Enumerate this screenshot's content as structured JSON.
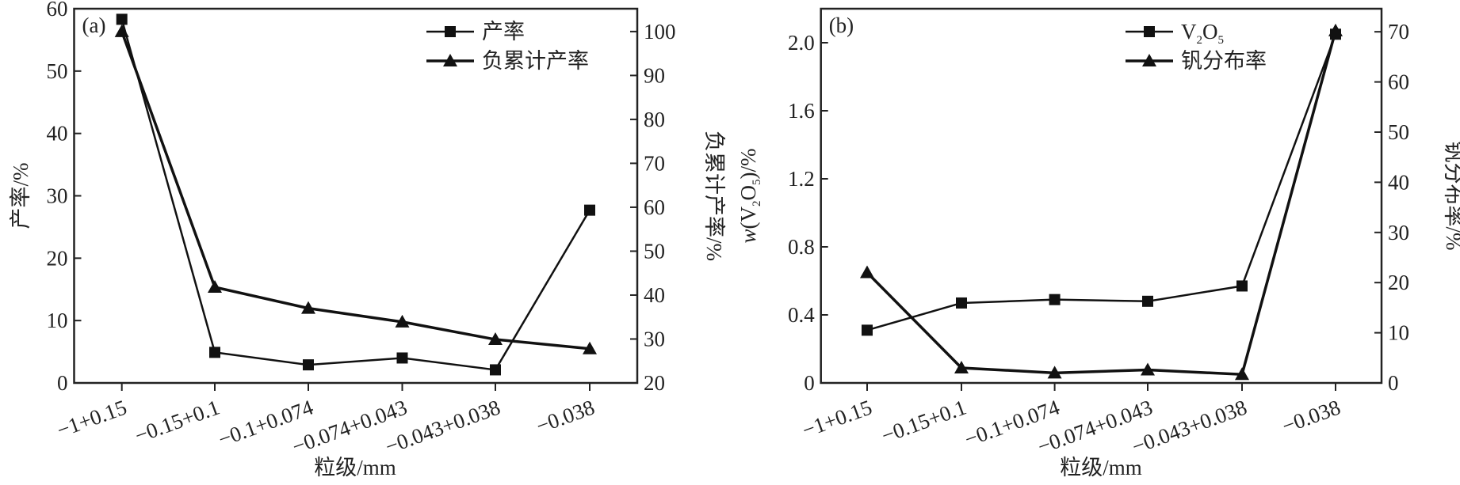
{
  "chart_data": [
    {
      "type": "line",
      "panel_label": "(a)",
      "xlabel": "粒级/mm",
      "ylabel": "产率/%",
      "ylabel_right": "负累计产率/%",
      "categories": [
        "−1+0.15",
        "−0.15+0.1",
        "−0.1+0.074",
        "−0.074+0.043",
        "−0.043+0.038",
        "−0.038"
      ],
      "ylim": [
        0,
        60
      ],
      "yticks": [
        0,
        10,
        20,
        30,
        40,
        50,
        60
      ],
      "ylim_right": [
        20,
        105.2
      ],
      "yticks_right": [
        20,
        30,
        40,
        50,
        60,
        70,
        80,
        90,
        100
      ],
      "legend_position": "top-right",
      "series": [
        {
          "name": "产率",
          "marker": "square",
          "axis": "left",
          "values": [
            58.3,
            4.9,
            2.9,
            4.0,
            2.1,
            27.7
          ]
        },
        {
          "name": "负累计产率",
          "marker": "triangle",
          "axis": "right",
          "values": [
            100,
            41.8,
            37.0,
            33.9,
            29.9,
            27.8
          ]
        }
      ]
    },
    {
      "type": "line",
      "panel_label": "(b)",
      "xlabel": "粒级/mm",
      "ylabel": "w(V2O5)/%",
      "ylabel_right": "钒分布率/%",
      "categories": [
        "−1+0.15",
        "−0.15+0.1",
        "−0.1+0.074",
        "−0.074+0.043",
        "−0.043+0.038",
        "−0.038"
      ],
      "ylim": [
        0,
        2.2
      ],
      "yticks": [
        "0",
        "0.4",
        "0.8",
        "1.2",
        "1.6",
        "2.0"
      ],
      "ylim_right": [
        0,
        74.6
      ],
      "yticks_right": [
        0,
        10,
        20,
        30,
        40,
        50,
        60,
        70
      ],
      "legend_position": "top-right",
      "series": [
        {
          "name": "V2O5",
          "marker": "square",
          "axis": "left",
          "values": [
            0.31,
            0.47,
            0.49,
            0.48,
            0.57,
            2.05
          ]
        },
        {
          "name": "钒分布率",
          "marker": "triangle",
          "axis": "right",
          "values": [
            22.0,
            3.0,
            2.0,
            2.6,
            1.7,
            70.2
          ]
        }
      ]
    }
  ]
}
